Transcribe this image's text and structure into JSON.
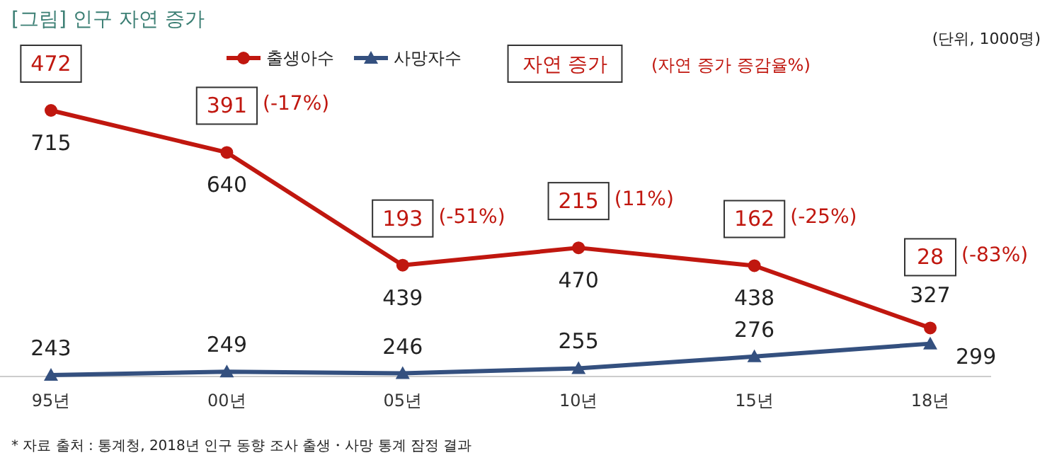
{
  "chart_data": {
    "type": "line",
    "title": "[그림] 인구 자연 증가",
    "categories": [
      "95년",
      "00년",
      "05년",
      "10년",
      "15년",
      "18년"
    ],
    "series": [
      {
        "name": "출생아수",
        "color": "#c0170f",
        "marker": "circle",
        "values": [
          715,
          640,
          439,
          470,
          438,
          327
        ]
      },
      {
        "name": "사망자수",
        "color": "#34507f",
        "marker": "triangle",
        "values": [
          243,
          249,
          246,
          255,
          276,
          299
        ]
      }
    ],
    "data_labels": true,
    "legend": "top",
    "grid": false,
    "annotations": [
      "(단위, 1000명)",
      "자연 증가",
      "(자연 증가 증감율%)",
      "* 자료 출처 :  통계청, 2018년 인구 동향 조사 출생・사망 통계 잠정 결과",
      {
        "text": "472",
        "x": "95년",
        "y": 715
      },
      {
        "text": "391",
        "x": "00년",
        "y": 640
      },
      "(-17%)",
      {
        "text": "193",
        "x": "05년",
        "y": 439
      },
      "(-51%)",
      {
        "text": "215",
        "x": "10년",
        "y": 470
      },
      "(11%)",
      {
        "text": "162",
        "x": "15년",
        "y": 438
      },
      "(-25%)",
      {
        "text": "28",
        "x": "18년",
        "y": 327
      },
      "(-83%)"
    ]
  }
}
